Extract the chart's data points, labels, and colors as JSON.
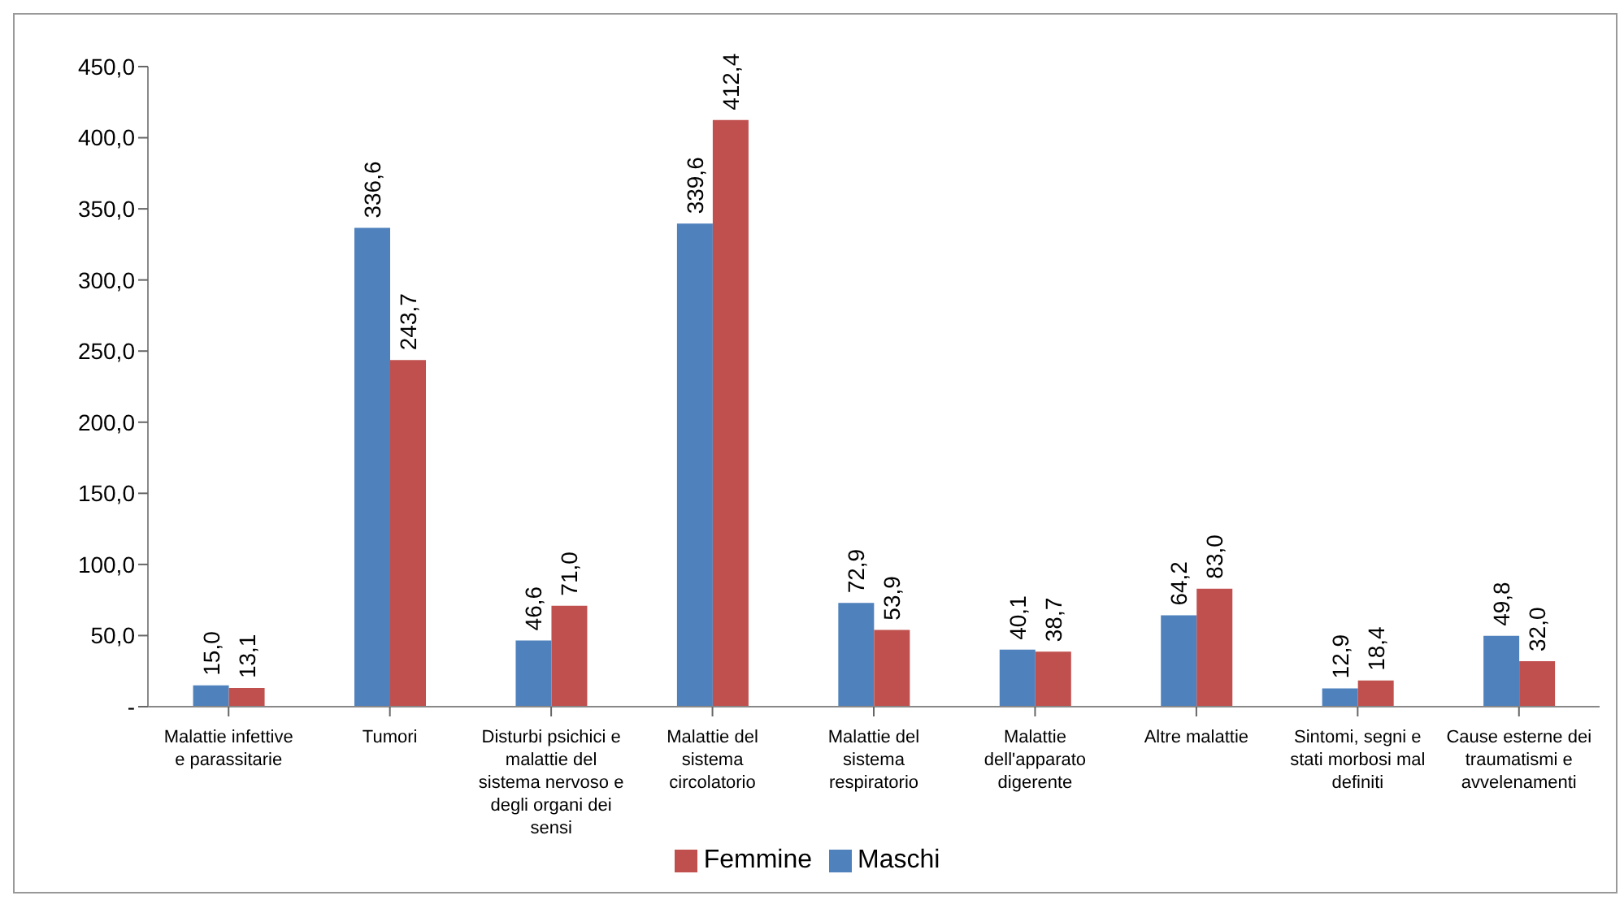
{
  "chart_data": {
    "type": "bar",
    "categories": [
      "Malattie infettive e parassitarie",
      "Tumori",
      "Disturbi psichici e malattie del sistema nervoso e degli organi dei sensi",
      "Malattie del sistema circolatorio",
      "Malattie del sistema respiratorio",
      "Malattie dell'apparato digerente",
      "Altre malattie",
      "Sintomi, segni e stati morbosi mal definiti",
      "Cause esterne dei traumatismi e avvelenamenti"
    ],
    "series": [
      {
        "name": "Maschi",
        "color": "#4f81bd",
        "values": [
          15.0,
          336.6,
          46.6,
          339.6,
          72.9,
          40.1,
          64.2,
          12.9,
          49.8
        ],
        "value_labels": [
          "15,0",
          "336,6",
          "46,6",
          "339,6",
          "72,9",
          "40,1",
          "64,2",
          "12,9",
          "49,8"
        ]
      },
      {
        "name": "Femmine",
        "color": "#c0504d",
        "values": [
          13.1,
          243.7,
          71.0,
          412.4,
          53.9,
          38.7,
          83.0,
          18.4,
          32.0
        ],
        "value_labels": [
          "13,1",
          "243,7",
          "71,0",
          "412,4",
          "53,9",
          "38,7",
          "83,0",
          "18,4",
          "32,0"
        ]
      }
    ],
    "ylim": [
      0,
      450
    ],
    "yticks": [
      {
        "value": 0,
        "label": "-"
      },
      {
        "value": 50,
        "label": "50,0"
      },
      {
        "value": 100,
        "label": "100,0"
      },
      {
        "value": 150,
        "label": "150,0"
      },
      {
        "value": 200,
        "label": "200,0"
      },
      {
        "value": 250,
        "label": "250,0"
      },
      {
        "value": 300,
        "label": "300,0"
      },
      {
        "value": 350,
        "label": "350,0"
      },
      {
        "value": 400,
        "label": "400,0"
      },
      {
        "value": 450,
        "label": "450,0"
      }
    ],
    "grid": false,
    "legend": "bottom"
  }
}
